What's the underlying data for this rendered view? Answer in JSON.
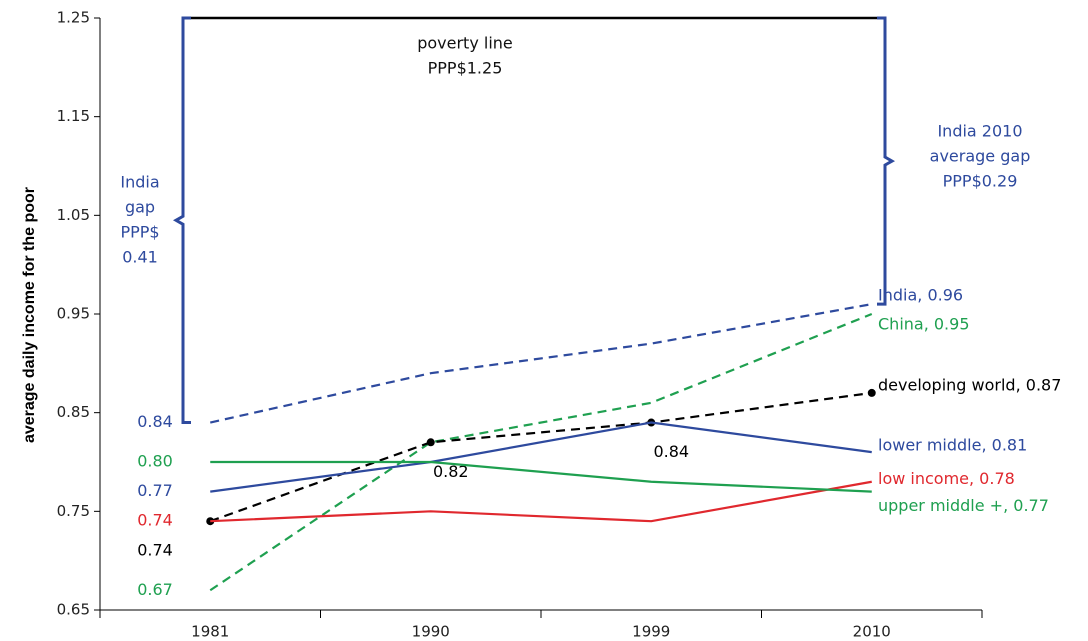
{
  "chart_data": {
    "type": "line",
    "y_label": "average daily income for the poor",
    "categories": [
      "1981",
      "1990",
      "1999",
      "2010"
    ],
    "ylim": [
      0.65,
      1.25
    ],
    "yticks": [
      0.65,
      0.75,
      0.85,
      0.95,
      1.05,
      1.15,
      1.25
    ],
    "poverty_line": {
      "value": 1.25,
      "label": [
        "poverty line",
        "PPP$1.25"
      ],
      "color": "#000000"
    },
    "annotations": [
      {
        "text": [
          "India",
          "gap",
          "PPP$",
          "0.41"
        ],
        "color": "#2e4a9e"
      },
      {
        "text": [
          "India 2010",
          "average gap",
          "PPP$0.29"
        ],
        "color": "#2e4a9e"
      }
    ],
    "series": [
      {
        "name": "India, 0.96",
        "color": "#2e4a9e",
        "dashed": true,
        "values": [
          0.84,
          0.89,
          0.92,
          0.96
        ],
        "value_labels": [
          "0.84",
          null,
          null,
          null
        ]
      },
      {
        "name": "China, 0.95",
        "color": "#1fa050",
        "dashed": true,
        "values": [
          0.67,
          0.82,
          0.86,
          0.95
        ],
        "value_labels": [
          "0.67",
          null,
          null,
          null
        ]
      },
      {
        "name": "developing  world, 0.87",
        "color": "#000000",
        "dashed": true,
        "markers": true,
        "values": [
          0.74,
          0.82,
          0.84,
          0.87
        ],
        "value_labels": [
          "0.74",
          "0.82",
          "0.84",
          null
        ]
      },
      {
        "name": "lower middle, 0.81",
        "color": "#2e4a9e",
        "dashed": false,
        "values": [
          0.77,
          0.8,
          0.84,
          0.81
        ],
        "value_labels": [
          "0.77",
          null,
          null,
          null
        ]
      },
      {
        "name": "low income, 0.78",
        "color": "#e0282e",
        "dashed": false,
        "values": [
          0.74,
          0.75,
          0.74,
          0.78
        ],
        "value_labels": [
          "0.74",
          null,
          null,
          null
        ]
      },
      {
        "name": "upper middle +, 0.77",
        "color": "#1fa050",
        "dashed": false,
        "values": [
          0.8,
          0.8,
          0.78,
          0.77
        ],
        "value_labels": [
          "0.80",
          null,
          null,
          null
        ]
      }
    ]
  }
}
